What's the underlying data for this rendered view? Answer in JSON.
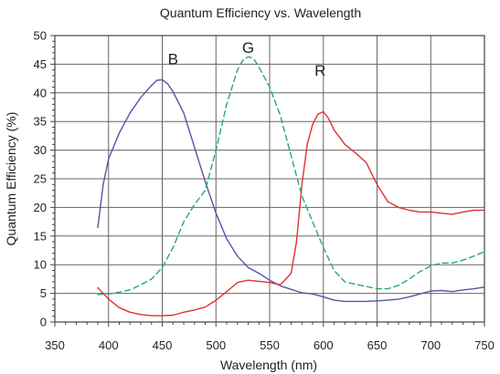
{
  "chart_data": {
    "type": "line",
    "title": "Quantum Efficiency vs. Wavelength",
    "xlabel": "Wavelength (nm)",
    "ylabel": "Quantum Efficiency (%)",
    "xlim": [
      350,
      750
    ],
    "ylim": [
      0,
      50
    ],
    "xticks": [
      350,
      400,
      450,
      500,
      550,
      600,
      650,
      700,
      750
    ],
    "yticks": [
      0,
      5,
      10,
      15,
      20,
      25,
      30,
      35,
      40,
      45,
      50
    ],
    "grid": true,
    "annotations": [
      {
        "text": "B",
        "x": 460,
        "y": 45
      },
      {
        "text": "G",
        "x": 530,
        "y": 47
      },
      {
        "text": "R",
        "x": 597,
        "y": 43
      }
    ],
    "series": [
      {
        "name": "B",
        "color": "#5555aa",
        "dash": "solid",
        "x": [
          390,
          395,
          400,
          410,
          420,
          430,
          440,
          445,
          450,
          455,
          460,
          470,
          480,
          490,
          500,
          510,
          520,
          530,
          540,
          550,
          560,
          570,
          580,
          590,
          600,
          610,
          620,
          630,
          640,
          650,
          660,
          670,
          680,
          690,
          700,
          710,
          720,
          730,
          740,
          750
        ],
        "y": [
          16.5,
          24,
          28.5,
          33,
          36.5,
          39.2,
          41.3,
          42.2,
          42.3,
          41.6,
          40.2,
          36.5,
          30.5,
          24.5,
          19,
          14.5,
          11.5,
          9.5,
          8.5,
          7.3,
          6.3,
          5.7,
          5.1,
          4.9,
          4.4,
          3.8,
          3.6,
          3.6,
          3.6,
          3.7,
          3.8,
          4.0,
          4.4,
          4.9,
          5.4,
          5.5,
          5.3,
          5.6,
          5.8,
          6.1
        ]
      },
      {
        "name": "G",
        "color": "#22aa77",
        "dash": "dashed",
        "x": [
          390,
          400,
          410,
          420,
          430,
          440,
          450,
          460,
          470,
          480,
          490,
          500,
          510,
          520,
          525,
          530,
          535,
          540,
          550,
          560,
          570,
          580,
          590,
          600,
          610,
          620,
          630,
          640,
          650,
          660,
          670,
          680,
          690,
          700,
          710,
          720,
          730,
          740,
          750
        ],
        "y": [
          4.8,
          4.9,
          5.2,
          5.6,
          6.5,
          7.5,
          9.5,
          13,
          17.5,
          20.5,
          23,
          30,
          38,
          44,
          45.7,
          46.3,
          46,
          44.5,
          41,
          36,
          29,
          22,
          17.5,
          13,
          9,
          7,
          6.6,
          6.2,
          5.8,
          5.8,
          6.4,
          7.5,
          8.8,
          9.8,
          10.3,
          10.3,
          10.8,
          11.5,
          12.3
        ]
      },
      {
        "name": "R",
        "color": "#dd3333",
        "dash": "solid",
        "x": [
          390,
          400,
          410,
          420,
          430,
          440,
          450,
          460,
          470,
          480,
          490,
          500,
          510,
          520,
          530,
          540,
          550,
          560,
          570,
          575,
          580,
          585,
          590,
          595,
          600,
          605,
          610,
          620,
          630,
          640,
          650,
          660,
          670,
          680,
          690,
          700,
          710,
          720,
          730,
          740,
          750
        ],
        "y": [
          6,
          4,
          2.5,
          1.7,
          1.3,
          1.1,
          1.1,
          1.2,
          1.7,
          2.1,
          2.6,
          3.8,
          5.3,
          6.9,
          7.3,
          7.1,
          6.9,
          6.5,
          8.5,
          14,
          24,
          31,
          34.5,
          36.3,
          36.7,
          35.5,
          33.5,
          31,
          29.5,
          27.8,
          24,
          21,
          20,
          19.5,
          19.2,
          19.2,
          19,
          18.8,
          19.2,
          19.5,
          19.5
        ]
      }
    ]
  }
}
